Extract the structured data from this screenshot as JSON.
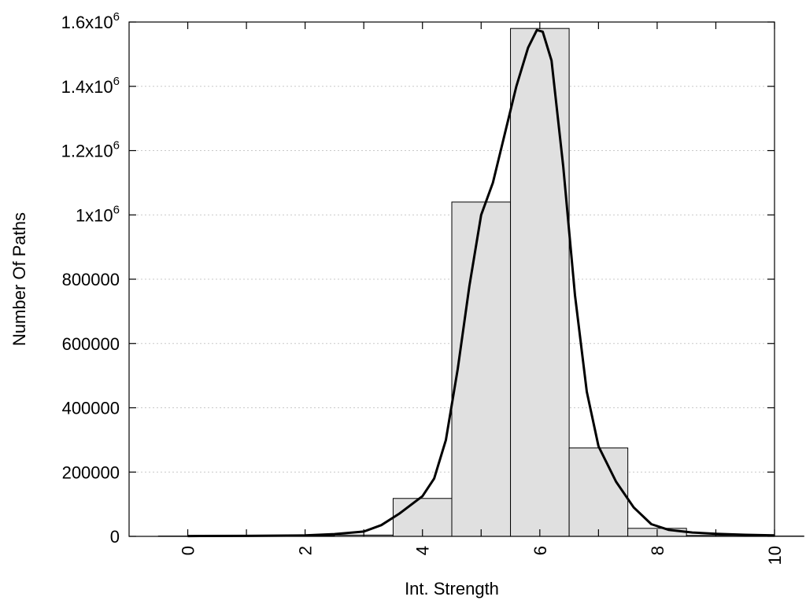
{
  "chart_data": {
    "type": "bar",
    "xlabel": "Int. Strength",
    "ylabel": "Number Of Paths",
    "xlim": [
      -1,
      10
    ],
    "ylim": [
      0,
      1600000
    ],
    "grid": true,
    "x_ticks": [
      {
        "value": 0,
        "label": "0"
      },
      {
        "value": 2,
        "label": "2"
      },
      {
        "value": 4,
        "label": "4"
      },
      {
        "value": 6,
        "label": "6"
      },
      {
        "value": 8,
        "label": "8"
      },
      {
        "value": 10,
        "label": "10"
      }
    ],
    "y_ticks": [
      {
        "value": 0,
        "mantissa": "0",
        "exp": ""
      },
      {
        "value": 200000,
        "mantissa": "200000",
        "exp": ""
      },
      {
        "value": 400000,
        "mantissa": "400000",
        "exp": ""
      },
      {
        "value": 600000,
        "mantissa": "600000",
        "exp": ""
      },
      {
        "value": 800000,
        "mantissa": "800000",
        "exp": ""
      },
      {
        "value": 1000000,
        "mantissa": "1x10",
        "exp": "6"
      },
      {
        "value": 1200000,
        "mantissa": "1.2x10",
        "exp": "6"
      },
      {
        "value": 1400000,
        "mantissa": "1.4x10",
        "exp": "6"
      },
      {
        "value": 1600000,
        "mantissa": "1.6x10",
        "exp": "6"
      }
    ],
    "bars": [
      {
        "x": 0,
        "value": 1000
      },
      {
        "x": 1,
        "value": 1500
      },
      {
        "x": 2,
        "value": 2000
      },
      {
        "x": 3,
        "value": 4000
      },
      {
        "x": 4,
        "value": 118000
      },
      {
        "x": 5,
        "value": 1040000
      },
      {
        "x": 6,
        "value": 1580000
      },
      {
        "x": 7,
        "value": 275000
      },
      {
        "x": 8,
        "value": 25000
      },
      {
        "x": 9,
        "value": 3000
      },
      {
        "x": 10,
        "value": 1000
      }
    ],
    "bar_width": 1,
    "curve": {
      "x": [
        0,
        1,
        2,
        2.5,
        3,
        3.3,
        3.6,
        4,
        4.2,
        4.4,
        4.6,
        4.8,
        5,
        5.2,
        5.4,
        5.6,
        5.8,
        5.95,
        6.05,
        6.2,
        6.4,
        6.6,
        6.8,
        7,
        7.3,
        7.6,
        7.9,
        8.2,
        8.6,
        9,
        9.5,
        10
      ],
      "y": [
        1000,
        1500,
        3000,
        7000,
        15000,
        35000,
        70000,
        125000,
        180000,
        300000,
        520000,
        780000,
        1000000,
        1100000,
        1250000,
        1400000,
        1520000,
        1575000,
        1570000,
        1480000,
        1150000,
        750000,
        450000,
        280000,
        170000,
        90000,
        38000,
        20000,
        12000,
        8000,
        5000,
        3000
      ]
    }
  }
}
